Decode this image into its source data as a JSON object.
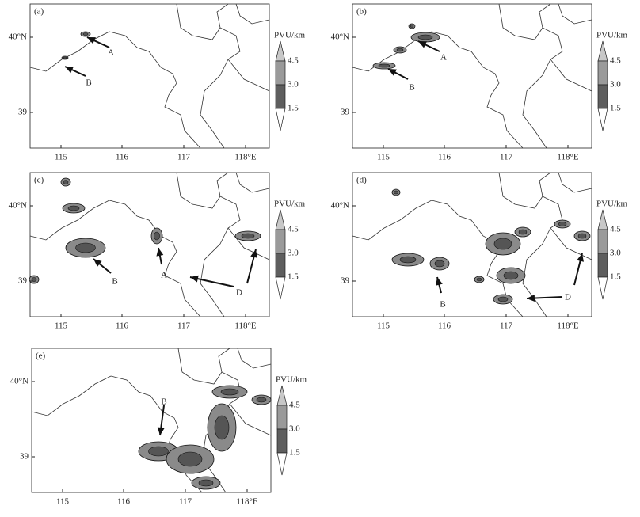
{
  "panels": [
    {
      "label": "(a)",
      "lat_labels": [
        "40°N",
        "39"
      ],
      "lon_labels": [
        "115",
        "116",
        "117",
        "118°E"
      ],
      "colorbar": {
        "title": "PVU/km",
        "ticks": [
          "4.5",
          "3.0",
          "1.5"
        ]
      },
      "annotations": [
        "A",
        "B"
      ]
    },
    {
      "label": "(b)",
      "lat_labels": [
        "40°N",
        "39"
      ],
      "lon_labels": [
        "115",
        "116",
        "117",
        "118°E"
      ],
      "colorbar": {
        "title": "PVU/km",
        "ticks": [
          "4.5",
          "3.0",
          "1.5"
        ]
      },
      "annotations": [
        "A",
        "B"
      ]
    },
    {
      "label": "(c)",
      "lat_labels": [
        "40°N",
        "39"
      ],
      "lon_labels": [
        "115",
        "116",
        "117",
        "118°E"
      ],
      "colorbar": {
        "title": "PVU/km",
        "ticks": [
          "4.5",
          "3.0",
          "1.5"
        ]
      },
      "annotations": [
        "B",
        "A",
        "D"
      ]
    },
    {
      "label": "(d)",
      "lat_labels": [
        "40°N",
        "39"
      ],
      "lon_labels": [
        "115",
        "116",
        "117",
        "118°E"
      ],
      "colorbar": {
        "title": "PVU/km",
        "ticks": [
          "4.5",
          "3.0",
          "1.5"
        ]
      },
      "annotations": [
        "B",
        "D"
      ]
    },
    {
      "label": "(e)",
      "lat_labels": [
        "40°N",
        "39"
      ],
      "lon_labels": [
        "115",
        "116",
        "117",
        "118°E"
      ],
      "colorbar": {
        "title": "PVU/km",
        "ticks": [
          "4.5",
          "3.0",
          "1.5"
        ]
      },
      "annotations": [
        "B"
      ]
    }
  ]
}
